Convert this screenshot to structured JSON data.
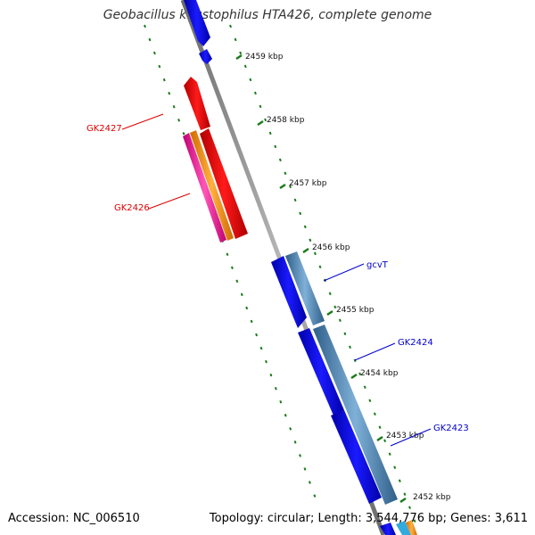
{
  "title": "Geobacillus kaustophilus HTA426, complete genome",
  "footer": {
    "accession": "Accession: NC_006510",
    "summary": "Topology: circular; Length: 3,544,776 bp; Genes: 3,611"
  },
  "ticks": [
    {
      "label": "2459 kbp",
      "kbp": 2459
    },
    {
      "label": "2458 kbp",
      "kbp": 2458
    },
    {
      "label": "2457 kbp",
      "kbp": 2457
    },
    {
      "label": "2456 kbp",
      "kbp": 2456
    },
    {
      "label": "2455 kbp",
      "kbp": 2455
    },
    {
      "label": "2454 kbp",
      "kbp": 2454
    },
    {
      "label": "2453 kbp",
      "kbp": 2453
    },
    {
      "label": "2452 kbp",
      "kbp": 2452
    }
  ],
  "gene_labels": [
    {
      "name": "GK2427",
      "color": "#dd0000",
      "side": "left"
    },
    {
      "name": "GK2426",
      "color": "#dd0000",
      "side": "left"
    },
    {
      "name": "gcvT",
      "color": "#0000cc",
      "side": "right"
    },
    {
      "name": "GK2424",
      "color": "#0000cc",
      "side": "right"
    },
    {
      "name": "GK2423",
      "color": "#0000cc",
      "side": "right"
    }
  ],
  "colors": {
    "backbone": "#8c8c8c",
    "tick": "#1a7a1a",
    "forward_gene": "#ff0000",
    "reverse_gene": "#0000ee",
    "cds_steel": "#4f86b4",
    "orange": "#ff9900",
    "magenta": "#ff2aa0"
  }
}
